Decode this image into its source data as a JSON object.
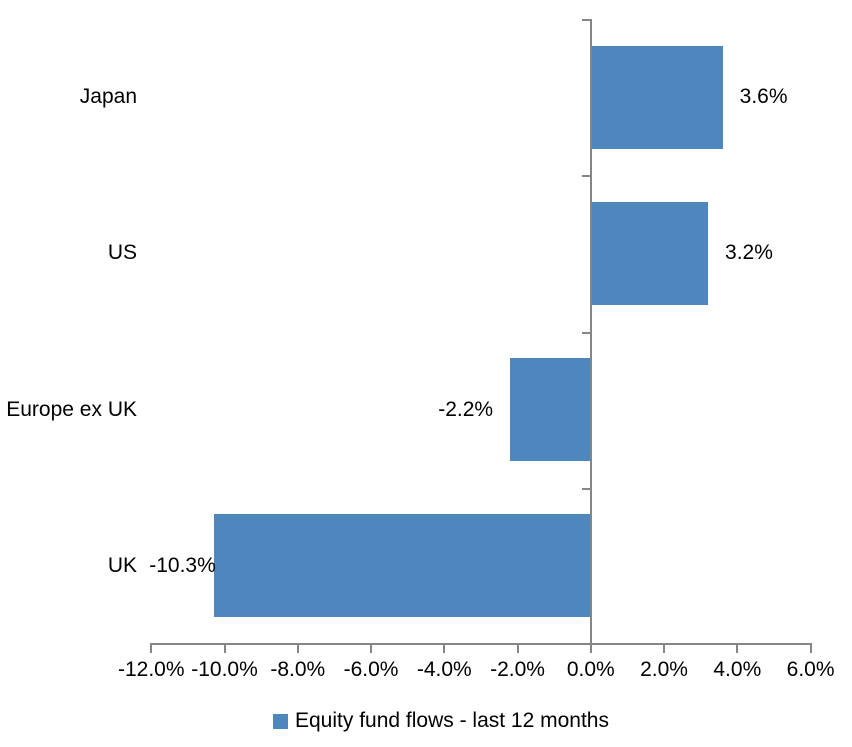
{
  "chart_data": {
    "type": "bar",
    "orientation": "horizontal",
    "title": "",
    "categories": [
      "Japan",
      "US",
      "Europe ex UK",
      "UK"
    ],
    "values": [
      3.6,
      3.2,
      -2.2,
      -10.3
    ],
    "data_labels": [
      "3.6%",
      "3.2%",
      "-2.2%",
      "-10.3%"
    ],
    "series_name": "Equity fund flows - last 12 months",
    "xlim": [
      -12,
      6
    ],
    "x_tick_step": 2,
    "x_tick_values": [
      -12,
      -10,
      -8,
      -6,
      -4,
      -2,
      0,
      2,
      4,
      6
    ],
    "x_tick_labels": [
      "-12.0%",
      "-10.0%",
      "-8.0%",
      "-6.0%",
      "-4.0%",
      "-2.0%",
      "0.0%",
      "2.0%",
      "4.0%",
      "6.0%"
    ],
    "grid": "off",
    "legend_position": "bottom",
    "bar_color": "#4D87BD",
    "axis_color": "#868686",
    "text_color": "#000000"
  },
  "legend": {
    "label": "Equity fund flows - last 12 months"
  }
}
